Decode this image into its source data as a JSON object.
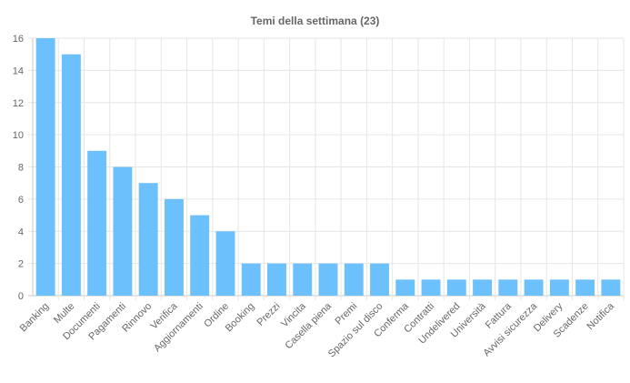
{
  "chart_data": {
    "type": "bar",
    "title": "Temi della settimana (23)",
    "categories": [
      "Banking",
      "Multe",
      "Documenti",
      "Pagamenti",
      "Rinnovo",
      "Verifica",
      "Aggiornamenti",
      "Ordine",
      "Booking",
      "Prezzi",
      "Vincita",
      "Casella piena",
      "Premi",
      "Spazio sul disco",
      "Conferma",
      "Contratti",
      "Undelivered",
      "Università",
      "Fattura",
      "Avvisi sicurezza",
      "Delivery",
      "Scadenze",
      "Notifica"
    ],
    "values": [
      16,
      15,
      9,
      8,
      7,
      6,
      5,
      4,
      2,
      2,
      2,
      2,
      2,
      2,
      1,
      1,
      1,
      1,
      1,
      1,
      1,
      1,
      1
    ],
    "yticks": [
      "0",
      "2",
      "4",
      "6",
      "8",
      "10",
      "12",
      "14",
      "16"
    ],
    "ylim": [
      0,
      16
    ],
    "xlabel": "",
    "ylabel": "",
    "grid": true,
    "legend": "none",
    "bar_color": "#6cc0fb",
    "grid_color": "#e6e6e6",
    "text_color": "#666666"
  }
}
